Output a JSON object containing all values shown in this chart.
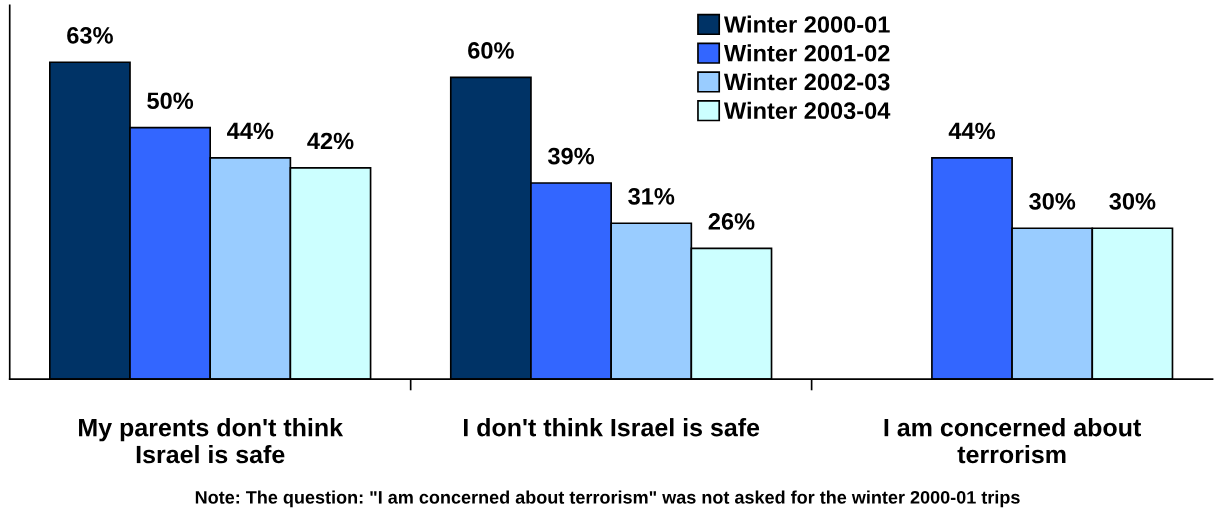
{
  "chart_data": {
    "type": "bar",
    "categories": [
      "My parents don't think\nIsrael is safe",
      "I don't think Israel is safe",
      "I am concerned about\nterrorism"
    ],
    "series": [
      {
        "name": "Winter 2000-01",
        "color": "#003366",
        "values": [
          63,
          60,
          null
        ],
        "value_labels": [
          "63%",
          "60%",
          null
        ]
      },
      {
        "name": "Winter 2001-02",
        "color": "#3366ff",
        "values": [
          50,
          39,
          44
        ],
        "value_labels": [
          "50%",
          "39%",
          "44%"
        ]
      },
      {
        "name": "Winter 2002-03",
        "color": "#99ccff",
        "values": [
          44,
          31,
          30
        ],
        "value_labels": [
          "44%",
          "31%",
          "30%"
        ]
      },
      {
        "name": "Winter 2003-04",
        "color": "#ccffff",
        "values": [
          42,
          26,
          30
        ],
        "value_labels": [
          "42%",
          "26%",
          "30%"
        ]
      }
    ],
    "legend": "top right",
    "grid": false,
    "annotations": [
      "Note: The question: \"I am concerned about terrorism\" was not asked for the winter 2000-01 trips"
    ]
  }
}
